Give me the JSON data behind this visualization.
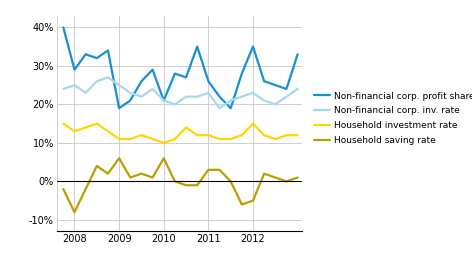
{
  "x_labels": [
    "2008",
    "2009",
    "2010",
    "2011",
    "2012"
  ],
  "profit_share": {
    "label": "Non-financial corp. profit share",
    "color": "#1B8FD4",
    "x": [
      2007.75,
      2008.0,
      2008.25,
      2008.5,
      2008.75,
      2009.0,
      2009.25,
      2009.5,
      2009.75,
      2010.0,
      2010.25,
      2010.5,
      2010.75,
      2011.0,
      2011.25,
      2011.5,
      2011.75,
      2012.0,
      2012.25,
      2012.5,
      2012.75,
      2013.0
    ],
    "y": [
      40,
      29,
      33,
      32,
      34,
      19,
      21,
      26,
      29,
      21,
      28,
      27,
      35,
      26,
      22,
      19,
      28,
      35,
      26,
      25,
      24,
      33
    ]
  },
  "inv_rate": {
    "label": "Non-financial corp. inv. rate",
    "color": "#A8D8F0",
    "x": [
      2007.75,
      2008.0,
      2008.25,
      2008.5,
      2008.75,
      2009.0,
      2009.25,
      2009.5,
      2009.75,
      2010.0,
      2010.25,
      2010.5,
      2010.75,
      2011.0,
      2011.25,
      2011.5,
      2011.75,
      2012.0,
      2012.25,
      2012.5,
      2012.75,
      2013.0
    ],
    "y": [
      24,
      25,
      23,
      26,
      27,
      25,
      23,
      22,
      24,
      21,
      20,
      22,
      22,
      23,
      19,
      21,
      22,
      23,
      21,
      20,
      22,
      24
    ]
  },
  "hh_inv_rate": {
    "label": "Household investment rate",
    "color": "#FFD700",
    "x": [
      2007.75,
      2008.0,
      2008.25,
      2008.5,
      2008.75,
      2009.0,
      2009.25,
      2009.5,
      2009.75,
      2010.0,
      2010.25,
      2010.5,
      2010.75,
      2011.0,
      2011.25,
      2011.5,
      2011.75,
      2012.0,
      2012.25,
      2012.5,
      2012.75,
      2013.0
    ],
    "y": [
      15,
      13,
      14,
      15,
      13,
      11,
      11,
      12,
      11,
      10,
      11,
      14,
      12,
      12,
      11,
      11,
      12,
      15,
      12,
      11,
      12,
      12
    ]
  },
  "hh_saving_rate": {
    "label": "Household saving rate",
    "color": "#B8A000",
    "x": [
      2007.75,
      2008.0,
      2008.25,
      2008.5,
      2008.75,
      2009.0,
      2009.25,
      2009.5,
      2009.75,
      2010.0,
      2010.25,
      2010.5,
      2010.75,
      2011.0,
      2011.25,
      2011.5,
      2011.75,
      2012.0,
      2012.25,
      2012.5,
      2012.75,
      2013.0
    ],
    "y": [
      -2,
      -8,
      -2,
      4,
      2,
      6,
      1,
      2,
      1,
      6,
      0,
      -1,
      -1,
      3,
      3,
      0,
      -6,
      -5,
      2,
      1,
      0,
      1
    ]
  },
  "ylim": [
    -13,
    43
  ],
  "yticks": [
    -10,
    0,
    10,
    20,
    30,
    40
  ],
  "xlim": [
    2007.6,
    2013.1
  ],
  "xticks": [
    2008,
    2009,
    2010,
    2011,
    2012
  ],
  "bg_color": "#ffffff",
  "grid_color": "#c8c8c8",
  "linewidth": 1.6,
  "legend_fontsize": 6.5,
  "tick_fontsize": 7.0
}
